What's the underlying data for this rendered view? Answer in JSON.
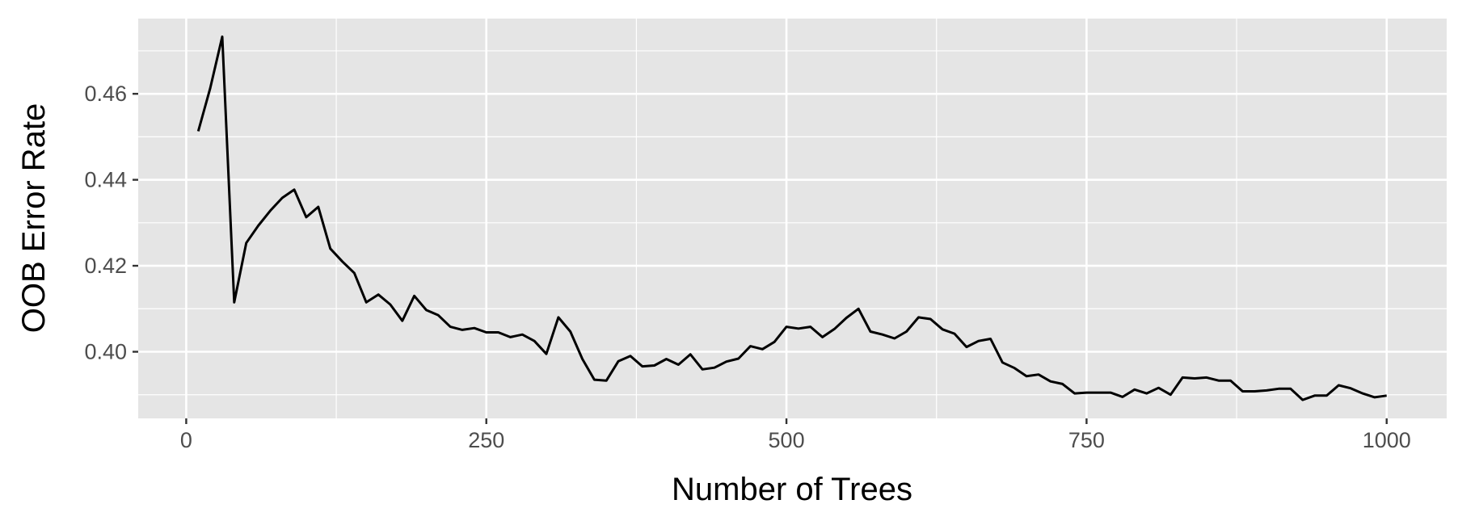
{
  "chart_data": {
    "type": "line",
    "title": "",
    "xlabel": "Number of Trees",
    "ylabel": "OOB Error Rate",
    "xlim": [
      -40,
      1050
    ],
    "ylim": [
      0.3845,
      0.4775
    ],
    "x_ticks": [
      0,
      250,
      500,
      750,
      1000
    ],
    "x_tick_labels": [
      "0",
      "250",
      "500",
      "750",
      "1000"
    ],
    "y_ticks": [
      0.4,
      0.42,
      0.44,
      0.46
    ],
    "y_tick_labels": [
      "0.40",
      "0.42",
      "0.44",
      "0.46"
    ],
    "grid": true,
    "legend": "none",
    "colors": {
      "panel": "#e5e5e5",
      "grid": "#ffffff",
      "line": "#000000",
      "tick_text": "#4d4d4d"
    },
    "series": [
      {
        "x": [
          10,
          20,
          30,
          40,
          50,
          60,
          70,
          80,
          90,
          100,
          110,
          120,
          130,
          140,
          150,
          160,
          170,
          180,
          190,
          200,
          210,
          220,
          230,
          240,
          250,
          260,
          270,
          280,
          290,
          300,
          310,
          320,
          330,
          340,
          350,
          360,
          370,
          380,
          390,
          400,
          410,
          420,
          430,
          440,
          450,
          460,
          470,
          480,
          490,
          500,
          510,
          520,
          530,
          540,
          550,
          560,
          570,
          580,
          590,
          600,
          610,
          620,
          630,
          640,
          650,
          660,
          670,
          680,
          690,
          700,
          710,
          720,
          730,
          740,
          750,
          760,
          770,
          780,
          790,
          800,
          810,
          820,
          830,
          840,
          850,
          860,
          870,
          880,
          890,
          900,
          910,
          920,
          930,
          940,
          950,
          960,
          970,
          980,
          990,
          1000
        ],
        "y": [
          0.4513,
          0.4613,
          0.4733,
          0.4115,
          0.4253,
          0.4293,
          0.4328,
          0.4358,
          0.4377,
          0.4313,
          0.4337,
          0.424,
          0.421,
          0.4183,
          0.4115,
          0.4133,
          0.411,
          0.4072,
          0.413,
          0.4097,
          0.4085,
          0.4058,
          0.4051,
          0.4055,
          0.4045,
          0.4045,
          0.4034,
          0.404,
          0.4025,
          0.3995,
          0.408,
          0.4047,
          0.3983,
          0.3935,
          0.3933,
          0.3978,
          0.399,
          0.3966,
          0.3968,
          0.3983,
          0.397,
          0.3994,
          0.3959,
          0.3963,
          0.3977,
          0.3984,
          0.4013,
          0.4006,
          0.4023,
          0.4058,
          0.4054,
          0.4058,
          0.4034,
          0.4053,
          0.4079,
          0.41,
          0.4047,
          0.404,
          0.4031,
          0.4047,
          0.408,
          0.4076,
          0.4052,
          0.4042,
          0.4011,
          0.4025,
          0.403,
          0.3975,
          0.3962,
          0.3943,
          0.3947,
          0.3931,
          0.3925,
          0.3903,
          0.3905,
          0.3905,
          0.3905,
          0.3895,
          0.3912,
          0.3903,
          0.3916,
          0.39,
          0.394,
          0.3938,
          0.394,
          0.3933,
          0.3933,
          0.3908,
          0.3908,
          0.391,
          0.3914,
          0.3914,
          0.3888,
          0.3898,
          0.3898,
          0.3922,
          0.3915,
          0.3903,
          0.3894,
          0.3898
        ]
      }
    ]
  }
}
